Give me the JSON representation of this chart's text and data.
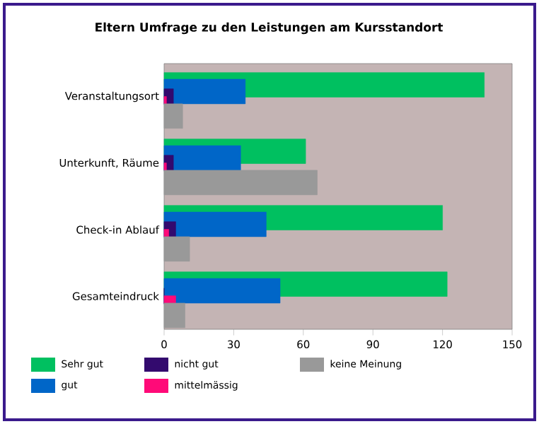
{
  "chart_data": {
    "type": "bar",
    "orientation": "horizontal",
    "title": "Eltern Umfrage zu den Leistungen am Kursstandort",
    "categories": [
      "Veranstaltungsort",
      "Unterkunft, Räume",
      "Check-in Ablauf",
      "Gesamteindruck"
    ],
    "series": [
      {
        "name": "Sehr gut",
        "color": "#00c060",
        "values": [
          138,
          61,
          120,
          122
        ]
      },
      {
        "name": "gut",
        "color": "#0066c8",
        "values": [
          35,
          33,
          44,
          50
        ]
      },
      {
        "name": "nicht gut",
        "color": "#330a6e",
        "values": [
          4,
          4,
          5,
          0
        ]
      },
      {
        "name": "mittelmässig",
        "color": "#ff0a78",
        "values": [
          1,
          1,
          2,
          5
        ]
      },
      {
        "name": "keine Meinung",
        "color": "#999999",
        "values": [
          8,
          66,
          11,
          9
        ]
      }
    ],
    "xlim": [
      0,
      150
    ],
    "xticks": [
      0,
      30,
      60,
      90,
      120,
      150
    ],
    "grid": false,
    "legend": "bottom"
  }
}
